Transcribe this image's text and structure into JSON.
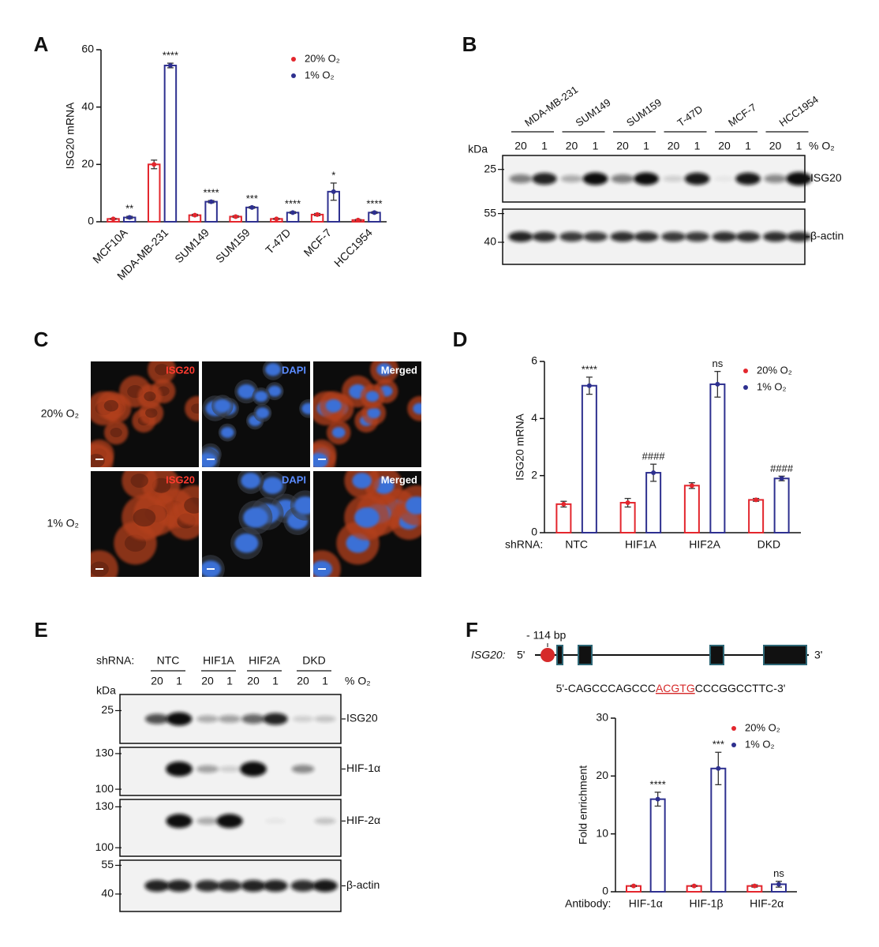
{
  "chart_data": [
    {
      "type": "bar",
      "panel_label": "A",
      "y_label": "ISG20 mRNA",
      "categories": [
        "MCF10A",
        "MDA-MB-231",
        "SUM149",
        "SUM159",
        "T-47D",
        "MCF-7",
        "HCC1954"
      ],
      "series": [
        {
          "name": "20% O₂",
          "color": "#e3262d",
          "values": [
            1,
            20,
            2.3,
            1.8,
            1,
            2.5,
            0.6
          ],
          "errors": [
            0.2,
            1.5,
            0.3,
            0.3,
            0.2,
            0.4,
            0.2
          ]
        },
        {
          "name": "1% O₂",
          "color": "#2e308f",
          "values": [
            1.5,
            54.5,
            7,
            5,
            3.2,
            10.5,
            3.2
          ],
          "errors": [
            0.4,
            0.8,
            0.4,
            0.3,
            0.3,
            3,
            0.3
          ]
        }
      ],
      "annotations": [
        "**",
        "****",
        "****",
        "***",
        "****",
        "*",
        "****"
      ],
      "ylim": [
        0,
        60
      ],
      "yticks": [
        0,
        20,
        40,
        60
      ],
      "legend": "upper right"
    },
    {
      "type": "bar",
      "panel_label": "D",
      "y_label": "ISG20 mRNA",
      "x_label": "shRNA:",
      "categories": [
        "NTC",
        "HIF1A",
        "HIF2A",
        "DKD"
      ],
      "series": [
        {
          "name": "20% O₂",
          "color": "#e3262d",
          "values": [
            1,
            1.05,
            1.65,
            1.15
          ],
          "errors": [
            0.1,
            0.15,
            0.1,
            0.05
          ]
        },
        {
          "name": "1% O₂",
          "color": "#2e308f",
          "values": [
            5.15,
            2.1,
            5.2,
            1.9
          ],
          "errors": [
            0.3,
            0.3,
            0.45,
            0.08
          ]
        }
      ],
      "annotations": [
        "****",
        "####",
        "ns",
        "####"
      ],
      "ylim": [
        0,
        6
      ],
      "yticks": [
        0,
        2,
        4,
        6
      ],
      "legend": "upper right"
    },
    {
      "type": "bar",
      "panel_label": "F",
      "y_label": "Fold enrichment",
      "x_label": "Antibody:",
      "categories": [
        "HIF-1α",
        "HIF-1β",
        "HIF-2α"
      ],
      "series": [
        {
          "name": "20% O₂",
          "color": "#e3262d",
          "values": [
            1,
            1,
            1
          ],
          "errors": [
            0.1,
            0.1,
            0.2
          ]
        },
        {
          "name": "1% O₂",
          "color": "#2e308f",
          "values": [
            16,
            21.3,
            1.3
          ],
          "errors": [
            1.2,
            2.8,
            0.5
          ]
        }
      ],
      "annotations": [
        "****",
        "***",
        "ns"
      ],
      "ylim": [
        0,
        30
      ],
      "yticks": [
        0,
        10,
        20,
        30
      ],
      "legend": "upper right"
    }
  ],
  "blot_B": {
    "label": "B",
    "cell_lines": [
      "MDA-MB-231",
      "SUM149",
      "SUM159",
      "T-47D",
      "MCF-7",
      "HCC1954"
    ],
    "unit": "kDa",
    "lanes": [
      "20",
      "1"
    ],
    "condition": "% O₂",
    "panels": [
      {
        "markers": [
          "25"
        ],
        "band": "ISG20"
      },
      {
        "markers": [
          "55",
          "40"
        ],
        "band": "β-actin"
      }
    ]
  },
  "images_C": {
    "label": "C",
    "channels": [
      "ISG20",
      "DAPI",
      "Merged"
    ],
    "rows": [
      "20% O₂",
      "1% O₂"
    ]
  },
  "blot_E": {
    "label": "E",
    "prefix": "shRNA:",
    "groups": [
      "NTC",
      "HIF1A",
      "HIF2A",
      "DKD"
    ],
    "unit": "kDa",
    "lanes": [
      "20",
      "1"
    ],
    "condition": "% O₂",
    "panels": [
      {
        "markers": [
          "25"
        ],
        "band": "ISG20"
      },
      {
        "markers": [
          "130",
          "100"
        ],
        "band": "HIF-1α"
      },
      {
        "markers": [
          "130",
          "100"
        ],
        "band": "HIF-2α"
      },
      {
        "markers": [
          "55",
          "40"
        ],
        "band": "β-actin"
      }
    ]
  },
  "gene_F": {
    "gene": "ISG20:",
    "five_end": "5'",
    "three_end": "3'",
    "position": "- 114 bp",
    "sequence_start": "5'-CAGCCCAGCCC",
    "motif": "ACGTG",
    "sequence_end": "CCCGGCCTTC-3'"
  }
}
